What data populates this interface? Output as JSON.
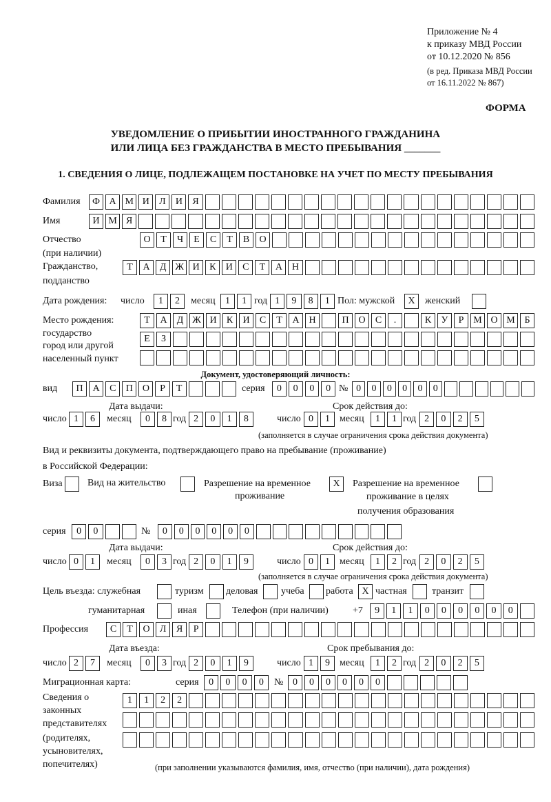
{
  "header": {
    "line1": "Приложение № 4",
    "line2": "к приказу МВД России",
    "line3": "от 10.12.2020 № 856",
    "line4": "(в ред. Приказа МВД России",
    "line5": "от 16.11.2022 № 867)",
    "form_label": "ФОРМА"
  },
  "title": {
    "line1": "УВЕДОМЛЕНИЕ О ПРИБЫТИИ ИНОСТРАННОГО ГРАЖДАНИНА",
    "line2": "ИЛИ ЛИЦА БЕЗ ГРАЖДАНСТВА В МЕСТО ПРЕБЫВАНИЯ _______"
  },
  "section1": {
    "heading": "1. СВЕДЕНИЯ О ЛИЦЕ, ПОДЛЕЖАЩЕМ ПОСТАНОВКЕ НА УЧЕТ ПО МЕСТУ ПРЕБЫВАНИЯ",
    "surname": {
      "label": "Фамилия",
      "value": "ФАМИЛИЯ"
    },
    "name": {
      "label": "Имя",
      "value": "ИМЯ"
    },
    "patronymic": {
      "label": "Отчество",
      "label2": "(при наличии)",
      "value": "ОТЧЕСТВО"
    },
    "citizenship": {
      "label": "Гражданство,",
      "label2": "подданство",
      "value": "ТАДЖИКИСТАН"
    },
    "birth_date": {
      "label": "Дата рождения:",
      "day_label": "число",
      "month_label": "месяц",
      "year_label": "год",
      "day": "12",
      "month": "11",
      "year": "1981",
      "sex_label": "Пол: мужской",
      "male": "X",
      "female_label": "женский",
      "female": ""
    },
    "birth_place": {
      "label1": "Место рождения:",
      "label2": "государство",
      "label3": "город или другой",
      "label4": "населенный пункт",
      "row1": "ТАДЖИКИСТАН ПОС. КУРМОМБ",
      "row2": "ЕЗ",
      "row3": ""
    },
    "id_document": {
      "heading": "Документ, удостоверяющий личность:",
      "kind_label": "вид",
      "kind": "ПАСПОРТ",
      "series_label": "серия",
      "series": "0000",
      "number_label": "№",
      "number": "000000",
      "issue_label": "Дата выдачи:",
      "valid_label": "Срок действия до:",
      "day_label": "число",
      "month_label": "месяц",
      "year_label": "год",
      "issue_day": "16",
      "issue_month": "08",
      "issue_year": "2018",
      "valid_day": "01",
      "valid_month": "11",
      "valid_year": "2025",
      "note": "(заполняется в случае ограничения срока действия документа)"
    },
    "stay_document": {
      "heading1": "Вид и реквизиты документа, подтверждающего право на пребывание (проживание)",
      "heading2": "в Российской Федерации:",
      "visa_label": "Виза",
      "visa": "",
      "residence_label": "Вид на жительство",
      "residence": "",
      "temp_label1": "Разрешение на временное",
      "temp_label2": "проживание",
      "temp": "X",
      "edu_label1": "Разрешение на временное",
      "edu_label2": "проживание в целях",
      "edu_label3": "получения образования",
      "edu": "",
      "series_label": "серия",
      "series": "00",
      "number_label": "№",
      "number": "000000",
      "issue_label": "Дата выдачи:",
      "valid_label": "Срок действия до:",
      "day_label": "число",
      "month_label": "месяц",
      "year_label": "год",
      "issue_day": "01",
      "issue_month": "03",
      "issue_year": "2019",
      "valid_day": "01",
      "valid_month": "12",
      "valid_year": "2025",
      "note": "(заполняется в случае ограничения срока действия документа)"
    },
    "purpose": {
      "label": "Цель въезда: служебная",
      "official": "",
      "tourism_label": "туризм",
      "tourism": "",
      "business_label": "деловая",
      "business": "",
      "study_label": "учеба",
      "study": "",
      "work_label": "работа",
      "work": "X",
      "private_label": "частная",
      "private": "",
      "transit_label": "транзит",
      "transit": "",
      "humanitarian_label": "гуманитарная",
      "humanitarian": "",
      "other_label": "иная",
      "other": ""
    },
    "phone": {
      "label": "Телефон (при наличии)",
      "prefix": "+7",
      "value": "911000000"
    },
    "profession": {
      "label": "Профессия",
      "value": "СТОЛЯР"
    },
    "entry": {
      "entry_label": "Дата въезда:",
      "stay_label": "Срок пребывания до:",
      "day_label": "число",
      "month_label": "месяц",
      "year_label": "год",
      "entry_day": "27",
      "entry_month": "03",
      "entry_year": "2019",
      "stay_day": "19",
      "stay_month": "12",
      "stay_year": "2025"
    },
    "migration_card": {
      "label": "Миграционная карта:",
      "series_label": "серия",
      "series": "0000",
      "number_label": "№",
      "number": "000000"
    },
    "representatives": {
      "label1": "Сведения о",
      "label2": "законных",
      "label3": "представителях",
      "label4": "(родителях,",
      "label5": "усыновителях,",
      "label6": "попечителях)",
      "row1": "1122",
      "row2": "",
      "row3": "",
      "note": "(при заполнении указываются фамилия, имя, отчество (при наличии), дата рождения)"
    }
  }
}
